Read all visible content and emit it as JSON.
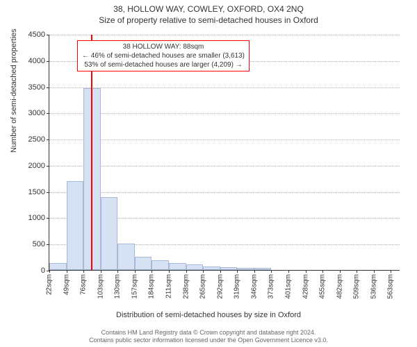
{
  "titles": {
    "line1": "38, HOLLOW WAY, COWLEY, OXFORD, OX4 2NQ",
    "line2": "Size of property relative to semi-detached houses in Oxford"
  },
  "chart": {
    "type": "histogram",
    "y_axis": {
      "title": "Number of semi-detached properties",
      "min": 0,
      "max": 4500,
      "tick_step": 500,
      "grid_color": "#b0b0b0"
    },
    "x_axis": {
      "title": "Distribution of semi-detached houses by size in Oxford",
      "tick_labels": [
        "22sqm",
        "49sqm",
        "76sqm",
        "103sqm",
        "130sqm",
        "157sqm",
        "184sqm",
        "211sqm",
        "238sqm",
        "265sqm",
        "292sqm",
        "319sqm",
        "346sqm",
        "373sqm",
        "401sqm",
        "428sqm",
        "455sqm",
        "482sqm",
        "509sqm",
        "536sqm",
        "563sqm"
      ],
      "min": 22,
      "max": 577,
      "bin_width": 27
    },
    "bars": {
      "values": [
        130,
        1700,
        3470,
        1390,
        500,
        250,
        180,
        130,
        100,
        70,
        50,
        45,
        40,
        0,
        0,
        0,
        0,
        0,
        0,
        0,
        0
      ],
      "fill_color": "#d6e2f3",
      "border_color": "#a8b8d8"
    },
    "reference_line": {
      "x_value": 88,
      "color": "#ff0000"
    },
    "annotation": {
      "line1": "38 HOLLOW WAY: 88sqm",
      "line2": "← 46% of semi-detached houses are smaller (3,613)",
      "line3": "53% of semi-detached houses are larger (4,209) →",
      "border_color": "#ff0000",
      "background": "#ffffff"
    },
    "background_color": "#ffffff",
    "axis_color": "#333333"
  },
  "footer": {
    "line1": "Contains HM Land Registry data © Crown copyright and database right 2024.",
    "line2": "Contains public sector information licensed under the Open Government Licence v3.0."
  }
}
